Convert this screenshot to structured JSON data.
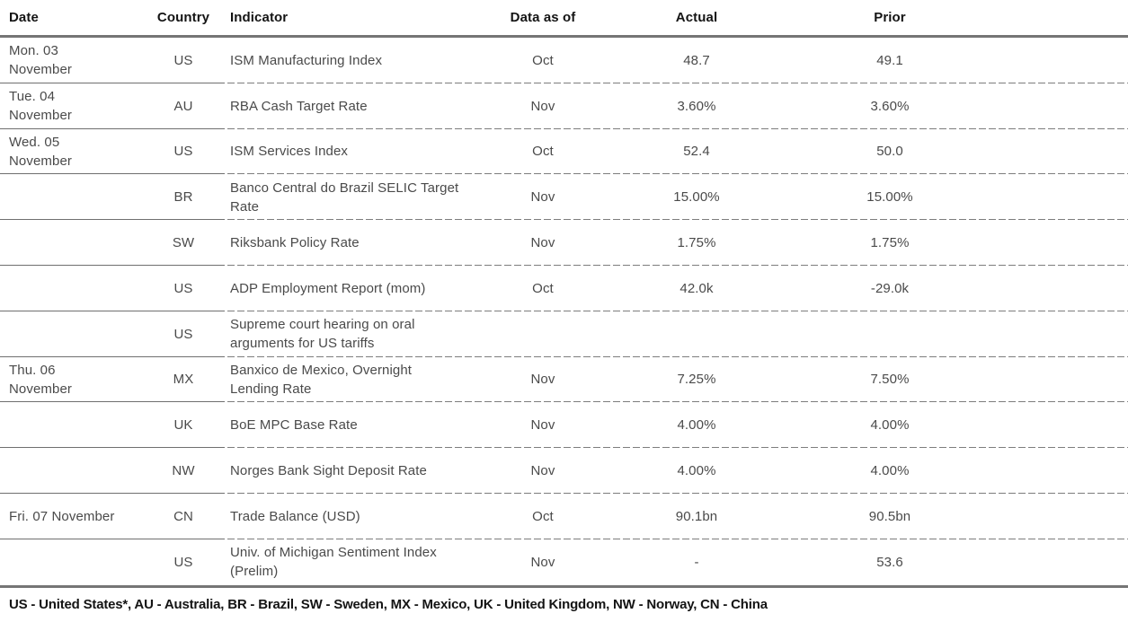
{
  "table": {
    "columns": [
      {
        "key": "date",
        "label": "Date"
      },
      {
        "key": "country",
        "label": "Country"
      },
      {
        "key": "indicator",
        "label": "Indicator"
      },
      {
        "key": "data_as_of",
        "label": "Data as of"
      },
      {
        "key": "actual",
        "label": "Actual"
      },
      {
        "key": "prior",
        "label": "Prior"
      }
    ],
    "rows": [
      {
        "date": "Mon. 03\nNovember",
        "country": "US",
        "indicator": "ISM Manufacturing Index",
        "data_as_of": "Oct",
        "actual": "48.7",
        "prior": "49.1"
      },
      {
        "date": "Tue. 04\nNovember",
        "country": "AU",
        "indicator": "RBA Cash Target Rate",
        "data_as_of": "Nov",
        "actual": "3.60%",
        "prior": "3.60%"
      },
      {
        "date": "Wed. 05\nNovember",
        "country": "US",
        "indicator": "ISM Services Index",
        "data_as_of": "Oct",
        "actual": "52.4",
        "prior": "50.0"
      },
      {
        "date": "",
        "country": "BR",
        "indicator": "Banco Central do Brazil SELIC Target\nRate",
        "data_as_of": "Nov",
        "actual": "15.00%",
        "prior": "15.00%"
      },
      {
        "date": "",
        "country": "SW",
        "indicator": "Riksbank Policy Rate",
        "data_as_of": "Nov",
        "actual": "1.75%",
        "prior": "1.75%"
      },
      {
        "date": "",
        "country": "US",
        "indicator": "ADP Employment Report (mom)",
        "data_as_of": "Oct",
        "actual": "42.0k",
        "prior": "-29.0k"
      },
      {
        "date": "",
        "country": "US",
        "indicator": "Supreme court hearing on oral\narguments for US tariffs",
        "data_as_of": "",
        "actual": "",
        "prior": ""
      },
      {
        "date": "Thu. 06\nNovember",
        "country": "MX",
        "indicator": "Banxico de Mexico, Overnight\nLending Rate",
        "data_as_of": "Nov",
        "actual": "7.25%",
        "prior": "7.50%"
      },
      {
        "date": "",
        "country": "UK",
        "indicator": "BoE MPC Base Rate",
        "data_as_of": "Nov",
        "actual": "4.00%",
        "prior": "4.00%"
      },
      {
        "date": "",
        "country": "NW",
        "indicator": "Norges Bank Sight Deposit Rate",
        "data_as_of": "Nov",
        "actual": "4.00%",
        "prior": "4.00%"
      },
      {
        "date": "Fri. 07 November",
        "country": "CN",
        "indicator": "Trade Balance (USD)",
        "data_as_of": "Oct",
        "actual": "90.1bn",
        "prior": "90.5bn"
      },
      {
        "date": "",
        "country": "US",
        "indicator": "Univ. of Michigan Sentiment Index\n(Prelim)",
        "data_as_of": "Nov",
        "actual": "-",
        "prior": "53.6"
      }
    ]
  },
  "footer": {
    "legend": "US - United States*, AU - Australia, BR - Brazil, SW - Sweden, MX - Mexico, UK - United Kingdom, NW - Norway, CN - China"
  },
  "colors": {
    "rule": "#757575",
    "header_text": "#141414",
    "body_text": "#4a4a4a"
  }
}
